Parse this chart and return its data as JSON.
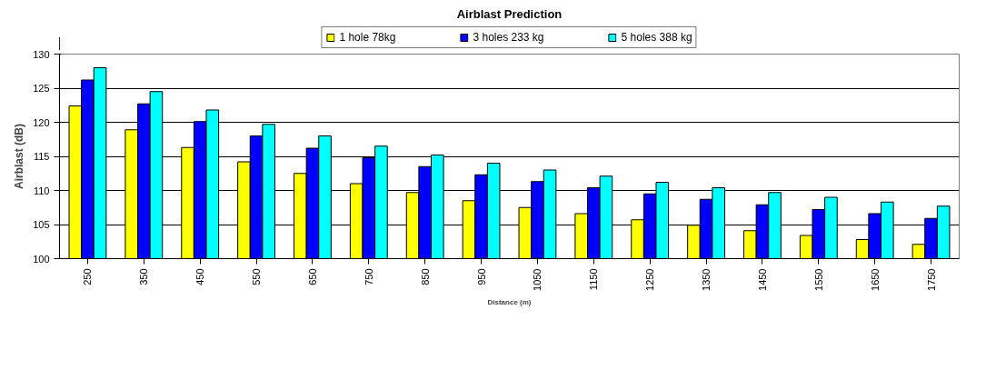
{
  "chart_data": {
    "type": "bar",
    "title": "Airblast Prediction",
    "xlabel": "Distance (m)",
    "ylabel": "Airblast (dB)",
    "categories": [
      "250",
      "350",
      "450",
      "550",
      "650",
      "750",
      "850",
      "950",
      "1050",
      "1150",
      "1250",
      "1350",
      "1450",
      "1550",
      "1650",
      "1750"
    ],
    "series": [
      {
        "name": "1 hole 78kg",
        "color": "#ffff00",
        "values": [
          122.4,
          118.9,
          116.3,
          114.2,
          112.5,
          111.0,
          109.7,
          108.5,
          107.5,
          106.6,
          105.7,
          104.9,
          104.1,
          103.4,
          102.8,
          102.1
        ]
      },
      {
        "name": "3 holes 233 kg",
        "color": "#0000ff",
        "values": [
          126.2,
          122.7,
          120.1,
          118.0,
          116.2,
          114.8,
          113.5,
          112.3,
          111.3,
          110.4,
          109.5,
          108.7,
          107.9,
          107.2,
          106.6,
          105.9
        ]
      },
      {
        "name": "5 holes 388 kg",
        "color": "#00ffff",
        "values": [
          128.0,
          124.5,
          121.8,
          119.7,
          118.0,
          116.5,
          115.2,
          114.0,
          113.0,
          112.1,
          111.2,
          110.4,
          109.7,
          109.0,
          108.3,
          107.7
        ]
      }
    ],
    "ylim": [
      100,
      130
    ],
    "yticks": [
      100,
      105,
      110,
      115,
      120,
      125,
      130
    ],
    "grid": "y",
    "legend": "top"
  }
}
